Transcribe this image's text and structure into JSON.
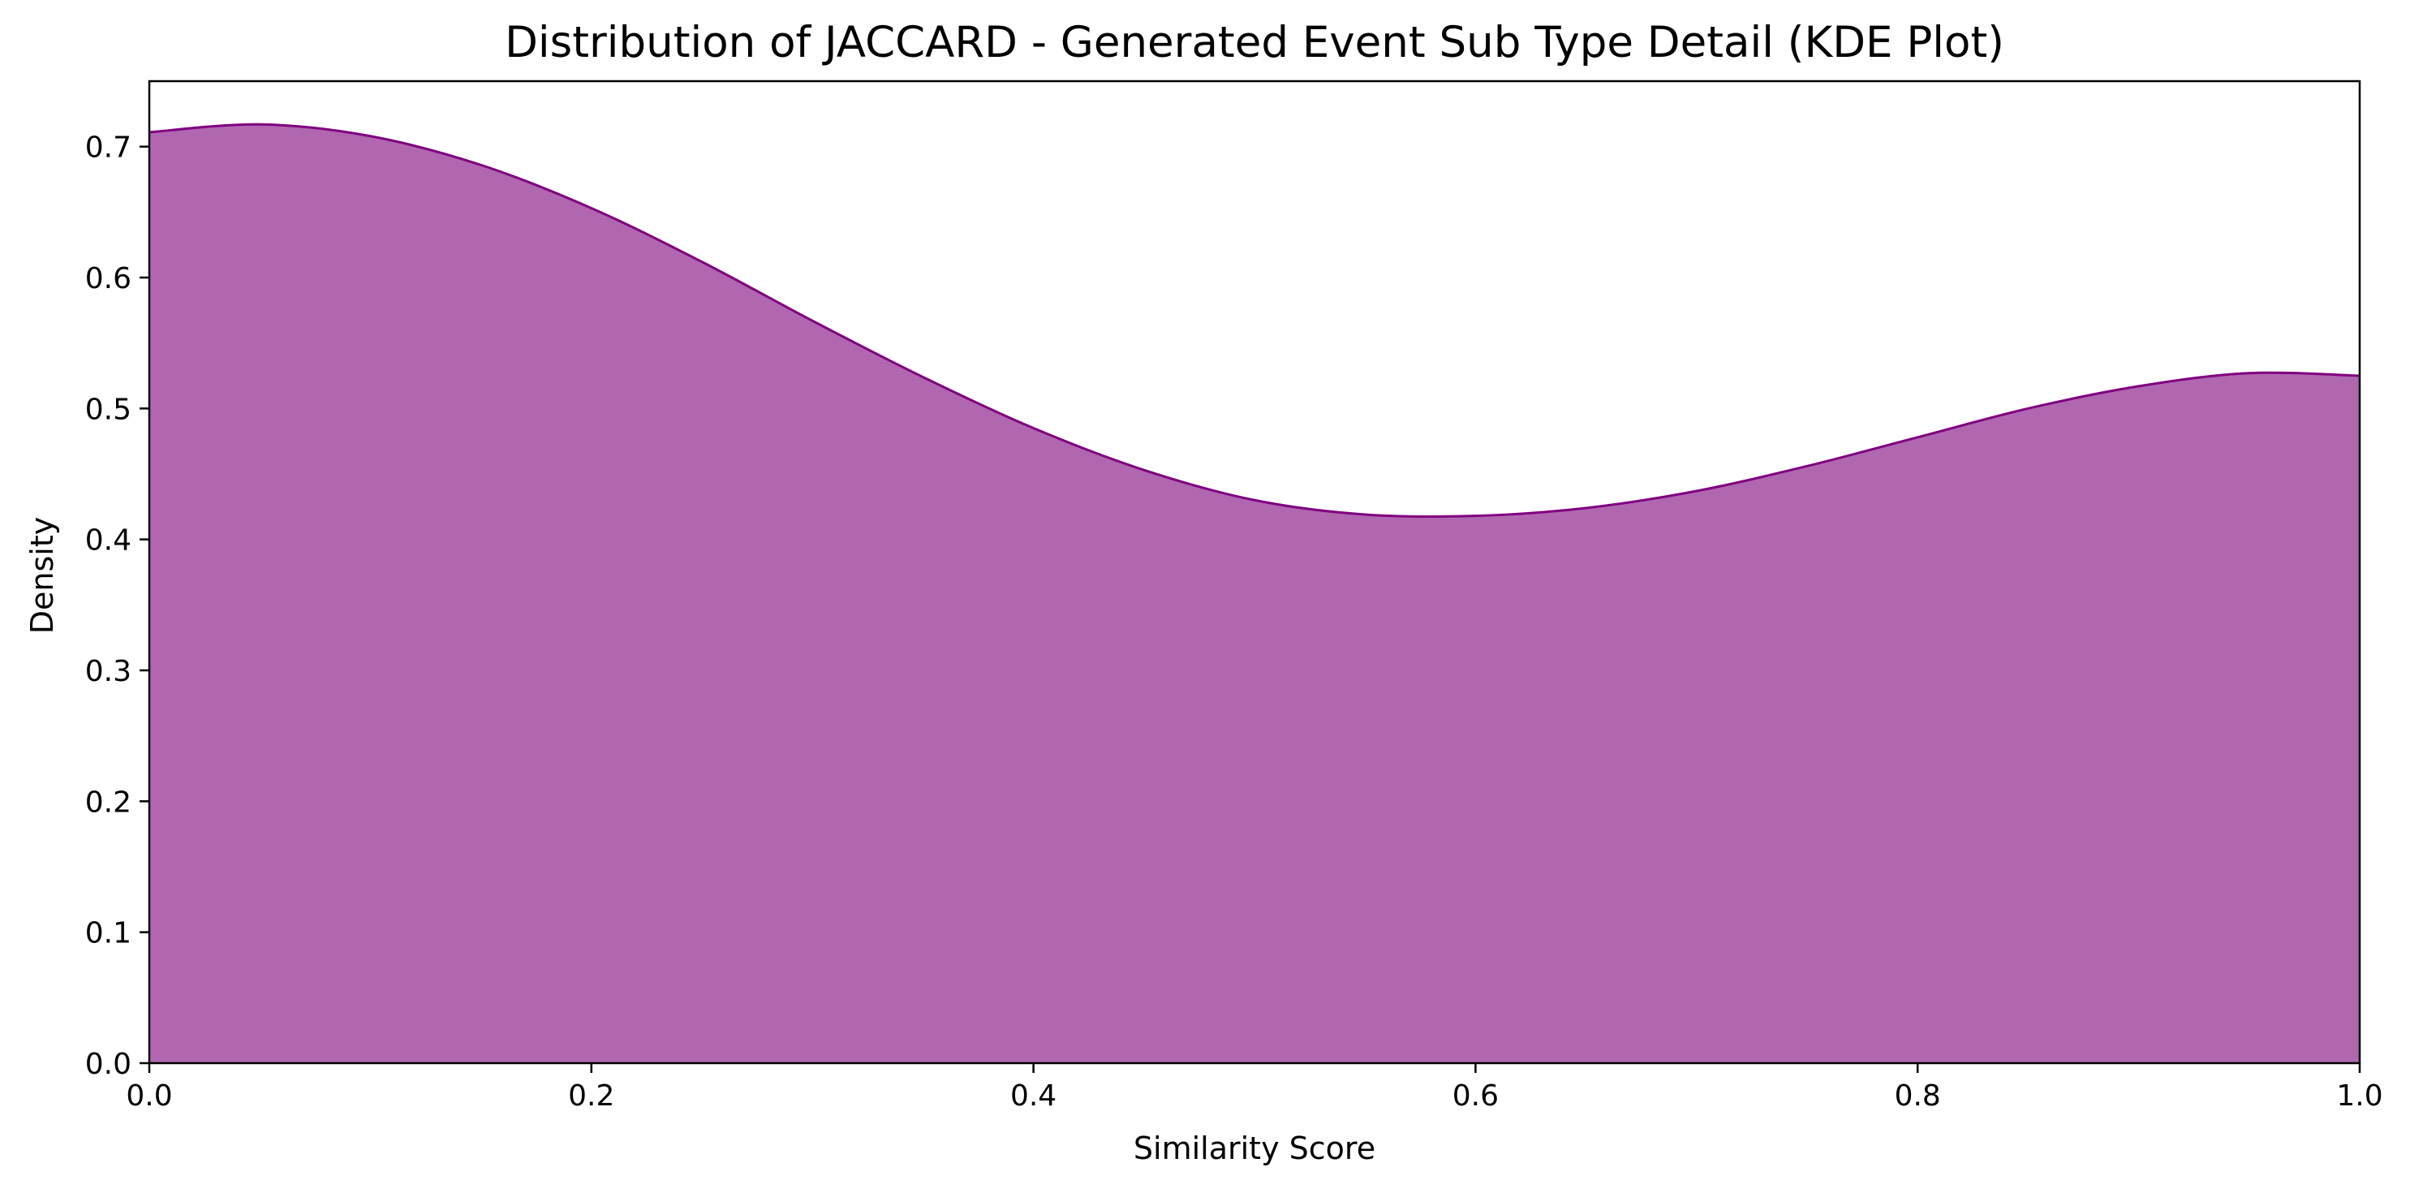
{
  "chart_data": {
    "type": "area",
    "title": "Distribution of JACCARD - Generated Event Sub Type Detail (KDE Plot)",
    "xlabel": "Similarity Score",
    "ylabel": "Density",
    "xlim": [
      0.0,
      1.0
    ],
    "ylim": [
      0.0,
      0.75
    ],
    "xticks": [
      "0.0",
      "0.2",
      "0.4",
      "0.6",
      "0.8",
      "1.0"
    ],
    "yticks": [
      "0.0",
      "0.1",
      "0.2",
      "0.3",
      "0.4",
      "0.5",
      "0.6",
      "0.7"
    ],
    "grid": false,
    "fill_color": "#b067b0",
    "line_color": "#800080",
    "series": [
      {
        "x": [
          0.0,
          0.05,
          0.1,
          0.15,
          0.2,
          0.25,
          0.3,
          0.35,
          0.4,
          0.45,
          0.5,
          0.55,
          0.6,
          0.65,
          0.7,
          0.75,
          0.8,
          0.85,
          0.9,
          0.95,
          1.0
        ],
        "y": [
          0.711,
          0.717,
          0.708,
          0.686,
          0.653,
          0.612,
          0.567,
          0.524,
          0.485,
          0.453,
          0.43,
          0.419,
          0.418,
          0.424,
          0.437,
          0.456,
          0.478,
          0.5,
          0.517,
          0.527,
          0.525
        ]
      }
    ]
  }
}
